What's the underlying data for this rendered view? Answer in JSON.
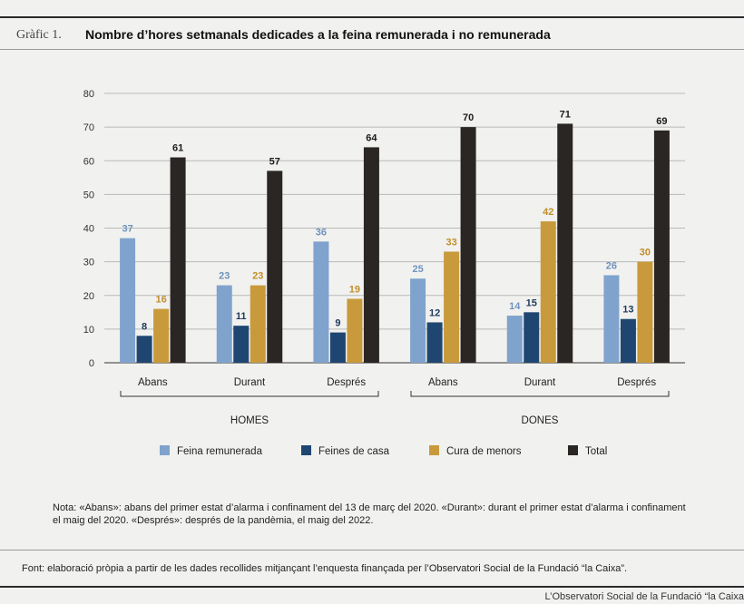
{
  "header": {
    "figure_label": "Gràfic 1.",
    "title": "Nombre d’hores setmanals dedicades a la feina remunerada i no remunerada"
  },
  "chart_data": {
    "type": "bar",
    "title": "Nombre d’hores setmanals dedicades a la feina remunerada i no remunerada",
    "categories": [
      "Abans",
      "Durant",
      "Després",
      "Abans",
      "Durant",
      "Després"
    ],
    "groups": [
      {
        "label": "HOMES",
        "categories": [
          "Abans",
          "Durant",
          "Després"
        ]
      },
      {
        "label": "DONES",
        "categories": [
          "Abans",
          "Durant",
          "Després"
        ]
      }
    ],
    "series": [
      {
        "name": "Feina remunerada",
        "color": "#7fa3cd",
        "label_color": "#6f93bd",
        "values": [
          37,
          23,
          36,
          25,
          14,
          26
        ]
      },
      {
        "name": "Feines de casa",
        "color": "#1f4670",
        "label_color": "#1f3a5c",
        "values": [
          8,
          11,
          9,
          12,
          15,
          13
        ]
      },
      {
        "name": "Cura de menors",
        "color": "#c99a3c",
        "label_color": "#c18e2c",
        "values": [
          16,
          23,
          19,
          33,
          42,
          30
        ]
      },
      {
        "name": "Total",
        "color": "#2a2623",
        "label_color": "#1e1b19",
        "values": [
          61,
          57,
          64,
          70,
          71,
          69
        ]
      }
    ],
    "ylim": [
      0,
      80
    ],
    "yticks": [
      0,
      10,
      20,
      30,
      40,
      50,
      60,
      70,
      80
    ],
    "grid": true,
    "legend_position": "bottom"
  },
  "notes": {
    "line1": "Nota: «Abans»: abans del primer estat d’alarma i confinament del 13 de març del 2020. «Durant»: durant el primer estat d’alarma i confinament",
    "line2": "el maig del 2020. «Després»: després de la pandèmia, el maig del 2022."
  },
  "source": "Font: elaboració pròpia a partir de les dades recollides mitjançant l’enquesta finançada per l’Observatori Social de la Fundació “la Caixa”.",
  "footer": "L’Observatori Social de la Fundació “la Caixa"
}
